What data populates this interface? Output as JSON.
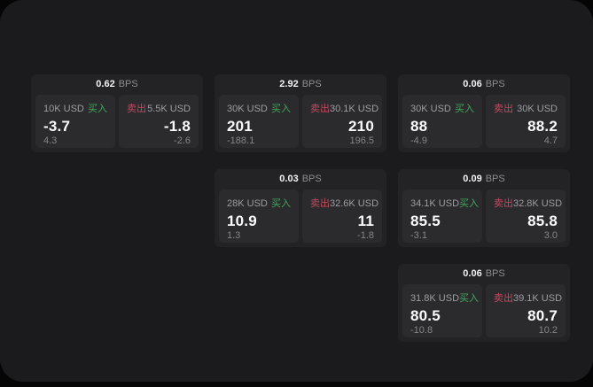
{
  "labels": {
    "bps_unit": "BPS",
    "buy": "买入",
    "sell": "卖出"
  },
  "colors": {
    "page_background": "#1b1b1d",
    "card_background": "#232326",
    "panel_background": "#2b2b2e",
    "buy_green": "#41a85c",
    "sell_red": "#c4495e",
    "text_primary": "#fafafa",
    "text_muted": "#8c8c91"
  },
  "cards": [
    {
      "spread": "0.62",
      "buy": {
        "size": "10K USD",
        "price": "-3.7",
        "sub": "4.3"
      },
      "sell": {
        "size": "5.5K USD",
        "price": "-1.8",
        "sub": "-2.6"
      }
    },
    {
      "spread": "2.92",
      "buy": {
        "size": "30K USD",
        "price": "201",
        "sub": "-188.1"
      },
      "sell": {
        "size": "30.1K USD",
        "price": "210",
        "sub": "196.5"
      }
    },
    {
      "spread": "0.06",
      "buy": {
        "size": "30K USD",
        "price": "88",
        "sub": "-4.9"
      },
      "sell": {
        "size": "30K USD",
        "price": "88.2",
        "sub": "4.7"
      }
    },
    {
      "spread": "0.03",
      "buy": {
        "size": "28K USD",
        "price": "10.9",
        "sub": "1.3"
      },
      "sell": {
        "size": "32.6K USD",
        "price": "11",
        "sub": "-1.8"
      }
    },
    {
      "spread": "0.09",
      "buy": {
        "size": "34.1K USD",
        "price": "85.5",
        "sub": "-3.1"
      },
      "sell": {
        "size": "32.8K USD",
        "price": "85.8",
        "sub": "3.0"
      }
    },
    {
      "spread": "0.06",
      "buy": {
        "size": "31.8K USD",
        "price": "80.5",
        "sub": "-10.8"
      },
      "sell": {
        "size": "39.1K USD",
        "price": "80.7",
        "sub": "10.2"
      }
    }
  ]
}
